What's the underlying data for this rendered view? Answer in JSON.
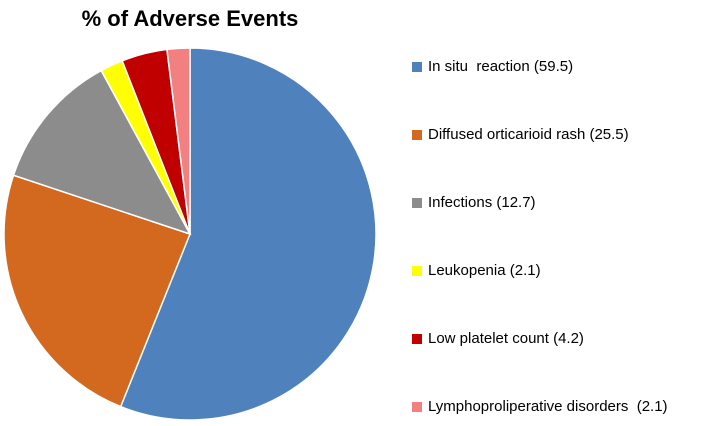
{
  "chart_data": {
    "type": "pie",
    "title": "% of Adverse Events",
    "legend_position": "right",
    "slices": [
      {
        "label": "In situ  reaction (59.5)",
        "value": 59.5,
        "color": "#4F81BD"
      },
      {
        "label": "Diffused orticarioid rash (25.5)",
        "value": 25.5,
        "color": "#D2691E"
      },
      {
        "label": "Infections (12.7)",
        "value": 12.7,
        "color": "#8C8C8C"
      },
      {
        "label": "Leukopenia (2.1)",
        "value": 2.1,
        "color": "#FFFF00"
      },
      {
        "label": "Low platelet count (4.2)",
        "value": 4.2,
        "color": "#C00000"
      },
      {
        "label": "Lymphoproliperative disorders  (2.1)",
        "value": 2.1,
        "color": "#F28080"
      }
    ]
  }
}
